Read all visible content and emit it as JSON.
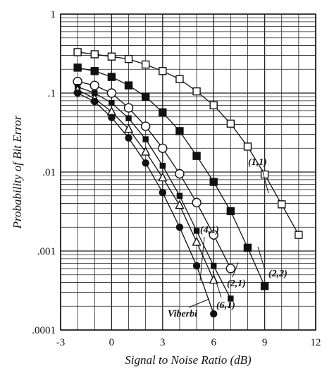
{
  "chart_data": {
    "type": "line",
    "title": "",
    "xlabel": "Signal to Noise Ratio (dB)",
    "ylabel": "Probability of Bit Error",
    "xlim": [
      -3,
      12
    ],
    "ylim": [
      0.0001,
      1
    ],
    "yscale": "log",
    "grid": true,
    "x_ticks": [
      "-3",
      "0",
      "3",
      "6",
      "9",
      "12"
    ],
    "y_ticks": [
      ".0001",
      ".001",
      ".01",
      ".1",
      "1"
    ],
    "series": [
      {
        "name": "(1,1)",
        "marker": "square-open",
        "x": [
          -2,
          -1,
          0,
          1,
          2,
          3,
          4,
          5,
          6,
          7,
          8,
          9,
          10,
          11
        ],
        "y": [
          0.33,
          0.31,
          0.29,
          0.27,
          0.23,
          0.19,
          0.15,
          0.105,
          0.07,
          0.041,
          0.021,
          0.0093,
          0.0039,
          0.0016
        ]
      },
      {
        "name": "(2,2)",
        "marker": "square-filled",
        "x": [
          -2,
          -1,
          0,
          1,
          2,
          3,
          4,
          5,
          6,
          7,
          8,
          9
        ],
        "y": [
          0.21,
          0.19,
          0.16,
          0.125,
          0.09,
          0.057,
          0.033,
          0.016,
          0.0075,
          0.0032,
          0.0011,
          0.00036
        ]
      },
      {
        "name": "(2,1)",
        "marker": "circle-open",
        "x": [
          -2,
          -1,
          0,
          1,
          2,
          3,
          4,
          5,
          6,
          7
        ],
        "y": [
          0.14,
          0.125,
          0.1,
          0.065,
          0.038,
          0.02,
          0.0095,
          0.0041,
          0.0016,
          0.0006
        ]
      },
      {
        "name": "(4,1)",
        "marker": "square-small-filled",
        "x": [
          -2,
          -1,
          0,
          1,
          2,
          3,
          4,
          5,
          6,
          7
        ],
        "y": [
          0.12,
          0.1,
          0.075,
          0.048,
          0.026,
          0.012,
          0.005,
          0.0018,
          0.00065,
          0.00025
        ]
      },
      {
        "name": "(6,1)",
        "marker": "triangle-open",
        "x": [
          -2,
          -1,
          0,
          1,
          2,
          3,
          4,
          5,
          6
        ],
        "y": [
          0.11,
          0.085,
          0.058,
          0.035,
          0.018,
          0.0085,
          0.0038,
          0.0013,
          0.00043
        ]
      },
      {
        "name": "Viberbi",
        "marker": "circle-filled",
        "x": [
          -2,
          -1,
          0,
          1,
          2,
          3,
          4,
          5,
          6
        ],
        "y": [
          0.1,
          0.078,
          0.049,
          0.027,
          0.013,
          0.0055,
          0.002,
          0.00065,
          0.00016
        ]
      }
    ]
  }
}
